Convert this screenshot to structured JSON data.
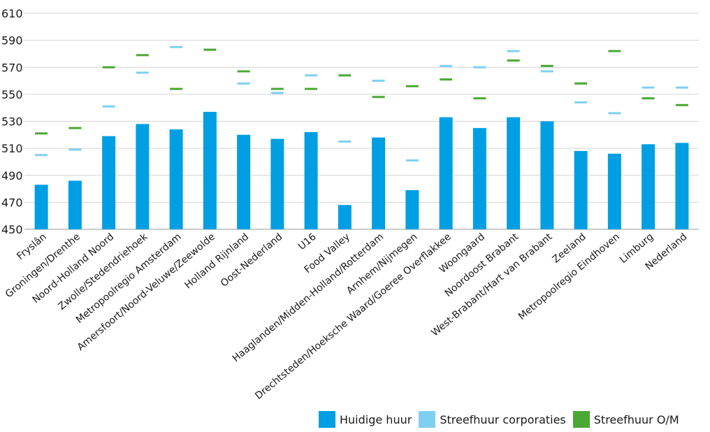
{
  "chart_data": {
    "type": "bar",
    "title": "",
    "xlabel": "",
    "ylabel": "",
    "ylim": [
      450,
      610
    ],
    "yticks": [
      450,
      470,
      490,
      510,
      530,
      550,
      570,
      590,
      610
    ],
    "grid": true,
    "legend_position": "bottom-right",
    "categories": [
      "Fryslân",
      "Groningen/Drenthe",
      "Noord-Holland Noord",
      "Zwolle/Stedendriehoek",
      "Metropoolregio Amsterdam",
      "Amersfoort/Noord-Veluwe/Zeewolde",
      "Holland Rijnland",
      "Oost-Nederland",
      "U16",
      "Food Valley",
      "Haaglanden/Midden-Holland/Rotterdam",
      "Arnhem/Nijmegen",
      "Drechtsteden/Hoeksche Waard/Goeree Overflakkee",
      "Woongaard",
      "Noordoost Brabant",
      "West-Brabant/Hart van Brabant",
      "Zeeland",
      "Metropoolregio Eindhoven",
      "Limburg",
      "Nederland"
    ],
    "series": [
      {
        "name": "Huidige huur",
        "mark": "bar",
        "color": "#009fe3",
        "values": [
          483,
          486,
          519,
          528,
          524,
          537,
          520,
          517,
          522,
          468,
          518,
          479,
          533,
          525,
          533,
          530,
          508,
          506,
          513,
          514
        ]
      },
      {
        "name": "Streefhuur corporaties",
        "mark": "dash",
        "color": "#7fd0f0",
        "values": [
          505,
          509,
          541,
          566,
          585,
          583,
          558,
          551,
          564,
          515,
          560,
          501,
          571,
          570,
          582,
          567,
          544,
          536,
          555,
          555
        ]
      },
      {
        "name": "Streefhuur O/M",
        "mark": "dash",
        "color": "#4aa833",
        "values": [
          521,
          525,
          570,
          579,
          554,
          583,
          567,
          554,
          554,
          564,
          548,
          556,
          561,
          547,
          575,
          571,
          558,
          582,
          547,
          542
        ]
      }
    ]
  }
}
